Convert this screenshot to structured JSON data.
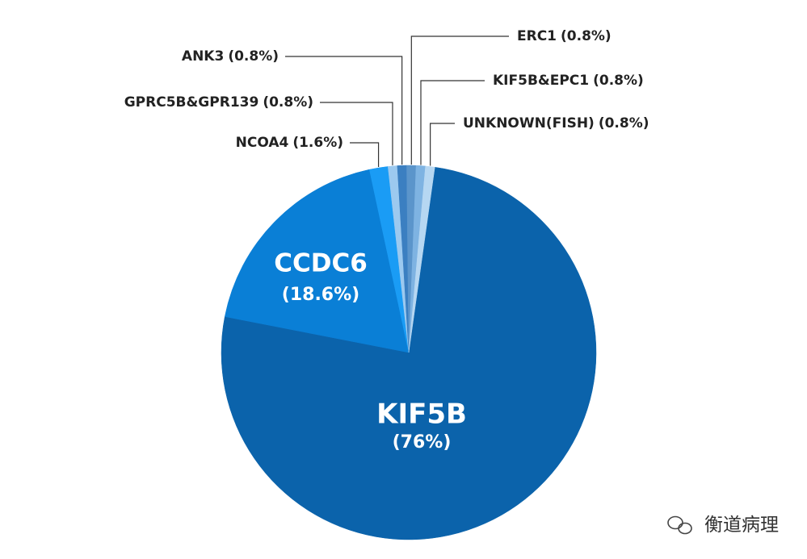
{
  "chart_data": {
    "type": "pie",
    "categories": [
      "KIF5B",
      "CCDC6",
      "NCOA4",
      "GPRC5B&GPR139",
      "ANK3",
      "ERC1",
      "KIF5B&EPC1",
      "UNKNOWN(FISH)"
    ],
    "values": [
      76,
      18.6,
      1.6,
      0.8,
      0.8,
      0.8,
      0.8,
      0.8
    ],
    "value_labels": [
      "(76%)",
      "(18.6%)",
      "(1.6%)",
      "(0.8%)",
      "(0.8%)",
      "(0.8%)",
      "(0.8%)",
      "(0.8%)"
    ],
    "colors": [
      "#0b63ab",
      "#0a7fd6",
      "#1a9cf5",
      "#9cc9ef",
      "#3b7fc1",
      "#5b95cb",
      "#7eb3e2",
      "#b6d7f2"
    ],
    "watermark": "衡道病理"
  }
}
